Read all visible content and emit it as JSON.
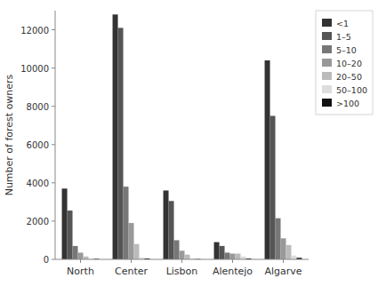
{
  "chart_data": {
    "type": "bar",
    "categories": [
      "North",
      "Center",
      "Lisbon",
      "Alentejo",
      "Algarve"
    ],
    "series": [
      {
        "name": "<1",
        "color": "#333333",
        "values": [
          3700,
          12800,
          3600,
          900,
          10400
        ]
      },
      {
        "name": "1–5",
        "color": "#555555",
        "values": [
          2550,
          12100,
          3050,
          700,
          7500
        ]
      },
      {
        "name": "5–10",
        "color": "#777777",
        "values": [
          700,
          3800,
          1000,
          350,
          2150
        ]
      },
      {
        "name": "10–20",
        "color": "#999999",
        "values": [
          350,
          1900,
          450,
          300,
          1100
        ]
      },
      {
        "name": "20–50",
        "color": "#bbbbbb",
        "values": [
          150,
          800,
          250,
          300,
          750
        ]
      },
      {
        "name": "50–100",
        "color": "#dddddd",
        "values": [
          50,
          100,
          50,
          150,
          200
        ]
      },
      {
        "name": ">100",
        "color": "#111111",
        "values": [
          30,
          50,
          20,
          50,
          80
        ]
      }
    ],
    "ylabel": "Number of forest owners",
    "ylim": [
      0,
      13000
    ],
    "yticks": [
      0,
      2000,
      4000,
      6000,
      8000,
      10000,
      12000
    ],
    "legend": "upper right"
  }
}
